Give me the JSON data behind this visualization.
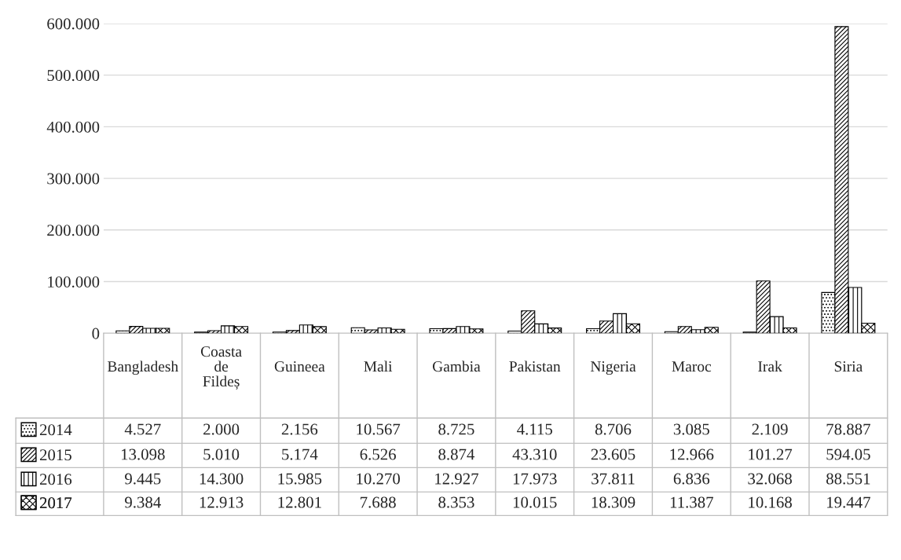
{
  "chart_data": {
    "type": "bar",
    "categories": [
      "Bangladesh",
      "Coasta de Fildeș",
      "Guineea",
      "Mali",
      "Gambia",
      "Pakistan",
      "Nigeria",
      "Maroc",
      "Irak",
      "Siria"
    ],
    "series": [
      {
        "name": "2014",
        "color": "#000000",
        "values": [
          4.527,
          2.0,
          2.156,
          10.567,
          8.725,
          4.115,
          8.706,
          3.085,
          2.109,
          78.887
        ],
        "value_labels": [
          "4.527",
          "2.000",
          "2.156",
          "10.567",
          "8.725",
          "4.115",
          "8.706",
          "3.085",
          "2.109",
          "78.887"
        ]
      },
      {
        "name": "2015",
        "color": "#000000",
        "values": [
          13.098,
          5.01,
          5.174,
          6.526,
          8.874,
          43.31,
          23.605,
          12.966,
          101.27,
          594.05
        ],
        "value_labels": [
          "13.098",
          "5.010",
          "5.174",
          "6.526",
          "8.874",
          "43.310",
          "23.605",
          "12.966",
          "101.27",
          "594.05"
        ]
      },
      {
        "name": "2016",
        "color": "#000000",
        "values": [
          9.445,
          14.3,
          15.985,
          10.27,
          12.927,
          17.973,
          37.811,
          6.836,
          32.068,
          88.551
        ],
        "value_labels": [
          "9.445",
          "14.300",
          "15.985",
          "10.270",
          "12.927",
          "17.973",
          "37.811",
          "6.836",
          "32.068",
          "88.551"
        ]
      },
      {
        "name": "2017",
        "color": "#000000",
        "values": [
          9.384,
          12.913,
          12.801,
          7.688,
          8.353,
          10.015,
          18.309,
          11.387,
          10.168,
          19.447
        ],
        "value_labels": [
          "9.384",
          "12.913",
          "12.801",
          "7.688",
          "8.353",
          "10.015",
          "18.309",
          "11.387",
          "10.168",
          "19.447"
        ]
      }
    ],
    "ylim": [
      0,
      600
    ],
    "yticks": [
      0,
      {
        "value": 100,
        "label": "100.000"
      },
      {
        "value": 200,
        "label": "200.000"
      },
      {
        "value": 300,
        "label": "300.000"
      },
      {
        "value": 400,
        "label": "400.000"
      },
      {
        "value": 500,
        "label": "500.000"
      },
      {
        "value": 600,
        "label": "600.000"
      }
    ],
    "grid": "y",
    "legend": "bottom left"
  }
}
